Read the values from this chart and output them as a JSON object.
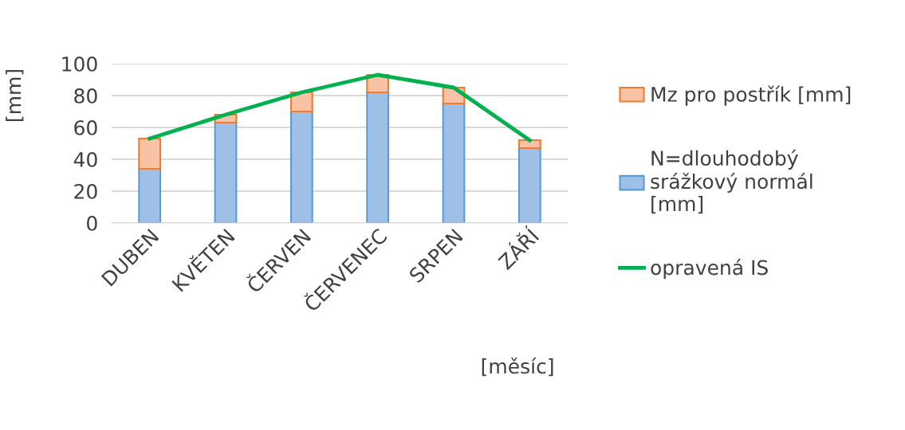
{
  "chart_data": {
    "type": "bar",
    "stacked": true,
    "categories": [
      "DUBEN",
      "KVĚTEN",
      "ČERVEN",
      "ČERVENEC",
      "SRPEN",
      "ZÁŘÍ"
    ],
    "series": [
      {
        "name": "N=dlouhodobý srážkový normál [mm]",
        "color": "#9fc0e6",
        "values": [
          34,
          63,
          70,
          82,
          75,
          47
        ]
      },
      {
        "name": "Mz pro postřík [mm]",
        "color": "#f8c2a4",
        "values": [
          19,
          5,
          12,
          11,
          10,
          5
        ]
      },
      {
        "name": "opravená IS",
        "type": "line",
        "color": "#00b050",
        "values": [
          53,
          68,
          82,
          93,
          85,
          52
        ]
      }
    ],
    "ylabel": "[mm]",
    "xlabel": "[měsíc]",
    "ylim": [
      0,
      100
    ],
    "yticks": [
      0,
      20,
      40,
      60,
      80,
      100
    ],
    "grid": "y",
    "legend": "right"
  }
}
